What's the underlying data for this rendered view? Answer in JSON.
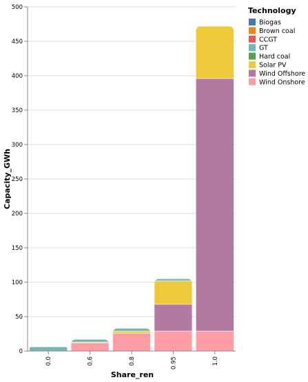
{
  "chart_data": {
    "type": "bar",
    "stacked": true,
    "xlabel": "Share_ren",
    "ylabel": "Capacity_GWh",
    "ylim": [
      0,
      500
    ],
    "yticks": [
      0,
      50,
      100,
      150,
      200,
      250,
      300,
      350,
      400,
      450,
      500
    ],
    "grid": true,
    "categories": [
      "0.0",
      "0.6",
      "0.8",
      "0.95",
      "1.0"
    ],
    "legend": {
      "title": "Technology",
      "placement": "top-right",
      "items": [
        {
          "name": "Biogas",
          "color": "#4c78a8"
        },
        {
          "name": "Brown coal",
          "color": "#f58518"
        },
        {
          "name": "CCGT",
          "color": "#e45756"
        },
        {
          "name": "GT",
          "color": "#72b7b2"
        },
        {
          "name": "Hard coal",
          "color": "#54a24b"
        },
        {
          "name": "Solar PV",
          "color": "#eeca3b"
        },
        {
          "name": "Wind Offshore",
          "color": "#b279a2"
        },
        {
          "name": "Wind Onshore",
          "color": "#ff9da6"
        }
      ]
    },
    "series": [
      {
        "name": "Wind Onshore",
        "color": "#ff9da6",
        "values": [
          0,
          12,
          26,
          29,
          29
        ]
      },
      {
        "name": "Wind Offshore",
        "color": "#b279a2",
        "values": [
          0,
          0,
          0,
          39,
          367
        ]
      },
      {
        "name": "Solar PV",
        "color": "#eeca3b",
        "values": [
          0,
          1,
          3,
          34,
          76
        ]
      },
      {
        "name": "GT",
        "color": "#72b7b2",
        "values": [
          6,
          4,
          4,
          3,
          0
        ]
      }
    ]
  }
}
